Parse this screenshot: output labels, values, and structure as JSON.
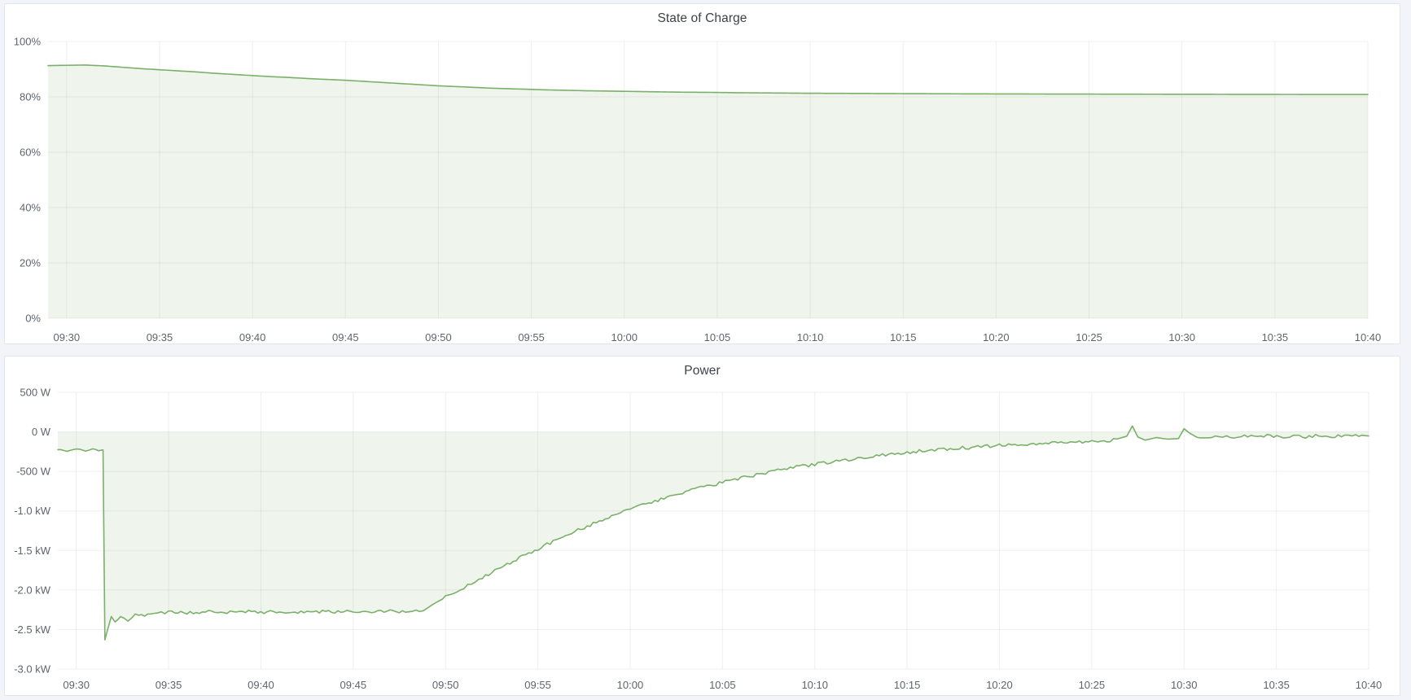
{
  "page": {
    "background": "#f2f4f9",
    "panel_background": "#ffffff"
  },
  "chart_data": [
    {
      "type": "area",
      "title": "State of Charge",
      "unit": "percent",
      "legend": "none",
      "grid": true,
      "x_axis": "time",
      "x_start": "09:29",
      "x_end": "10:40",
      "xlim_minutes": [
        0,
        71
      ],
      "ylim": [
        0,
        100
      ],
      "line_color": "#7bb06a",
      "fill_opacity": 0.12,
      "y_ticks": [
        [
          0,
          "0%"
        ],
        [
          20,
          "20%"
        ],
        [
          40,
          "40%"
        ],
        [
          60,
          "60%"
        ],
        [
          80,
          "80%"
        ],
        [
          100,
          "100%"
        ]
      ],
      "x_ticks": [
        [
          1,
          "09:30"
        ],
        [
          6,
          "09:35"
        ],
        [
          11,
          "09:40"
        ],
        [
          16,
          "09:45"
        ],
        [
          21,
          "09:50"
        ],
        [
          26,
          "09:55"
        ],
        [
          31,
          "10:00"
        ],
        [
          36,
          "10:05"
        ],
        [
          41,
          "10:10"
        ],
        [
          46,
          "10:15"
        ],
        [
          51,
          "10:20"
        ],
        [
          56,
          "10:25"
        ],
        [
          61,
          "10:30"
        ],
        [
          66,
          "10:35"
        ],
        [
          71,
          "10:40"
        ]
      ],
      "fill_to": 0,
      "noise_segments": [],
      "series": [
        {
          "name": "State of Charge",
          "points": [
            [
              0,
              91.3
            ],
            [
              1,
              91.4
            ],
            [
              2,
              91.5
            ],
            [
              3,
              91.2
            ],
            [
              4,
              90.7
            ],
            [
              5,
              90.2
            ],
            [
              6,
              89.8
            ],
            [
              7,
              89.4
            ],
            [
              8,
              89.0
            ],
            [
              9,
              88.5
            ],
            [
              10,
              88.1
            ],
            [
              11,
              87.7
            ],
            [
              12,
              87.3
            ],
            [
              13,
              87.0
            ],
            [
              14,
              86.6
            ],
            [
              15,
              86.3
            ],
            [
              16,
              86.0
            ],
            [
              17,
              85.6
            ],
            [
              18,
              85.2
            ],
            [
              19,
              84.8
            ],
            [
              20,
              84.4
            ],
            [
              21,
              84.0
            ],
            [
              22,
              83.7
            ],
            [
              23,
              83.4
            ],
            [
              24,
              83.1
            ],
            [
              25,
              82.9
            ],
            [
              26,
              82.7
            ],
            [
              27,
              82.5
            ],
            [
              28,
              82.35
            ],
            [
              29,
              82.2
            ],
            [
              30,
              82.1
            ],
            [
              31,
              82.0
            ],
            [
              32,
              81.9
            ],
            [
              33,
              81.8
            ],
            [
              34,
              81.7
            ],
            [
              35,
              81.65
            ],
            [
              36,
              81.6
            ],
            [
              37,
              81.5
            ],
            [
              38,
              81.45
            ],
            [
              39,
              81.4
            ],
            [
              40,
              81.35
            ],
            [
              41,
              81.3
            ],
            [
              42,
              81.28
            ],
            [
              43,
              81.25
            ],
            [
              44,
              81.22
            ],
            [
              45,
              81.2
            ],
            [
              46,
              81.17
            ],
            [
              47,
              81.15
            ],
            [
              48,
              81.12
            ],
            [
              49,
              81.1
            ],
            [
              50,
              81.08
            ],
            [
              51,
              81.06
            ],
            [
              52,
              81.05
            ],
            [
              53,
              81.03
            ],
            [
              54,
              81.02
            ],
            [
              55,
              81.0
            ],
            [
              56,
              81.0
            ],
            [
              57,
              80.98
            ],
            [
              58,
              80.97
            ],
            [
              59,
              80.96
            ],
            [
              60,
              80.95
            ],
            [
              61,
              80.94
            ],
            [
              62,
              80.93
            ],
            [
              63,
              80.92
            ],
            [
              64,
              80.91
            ],
            [
              65,
              80.9
            ],
            [
              66,
              80.89
            ],
            [
              67,
              80.88
            ],
            [
              68,
              80.87
            ],
            [
              69,
              80.86
            ],
            [
              70,
              80.86
            ],
            [
              71,
              80.85
            ]
          ]
        }
      ]
    },
    {
      "type": "area",
      "title": "Power",
      "unit": "watt",
      "legend": "none",
      "grid": true,
      "x_axis": "time",
      "x_start": "09:29",
      "x_end": "10:40",
      "xlim_minutes": [
        0,
        71
      ],
      "ylim": [
        -3000,
        500
      ],
      "line_color": "#7bb06a",
      "fill_opacity": 0.12,
      "y_ticks": [
        [
          500,
          "500 W"
        ],
        [
          0,
          "0 W"
        ],
        [
          -500,
          "-500 W"
        ],
        [
          -1000,
          "-1.0 kW"
        ],
        [
          -1500,
          "-1.5 kW"
        ],
        [
          -2000,
          "-2.0 kW"
        ],
        [
          -2500,
          "-2.5 kW"
        ],
        [
          -3000,
          "-3.0 kW"
        ]
      ],
      "x_ticks": [
        [
          1,
          "09:30"
        ],
        [
          6,
          "09:35"
        ],
        [
          11,
          "09:40"
        ],
        [
          16,
          "09:45"
        ],
        [
          21,
          "09:50"
        ],
        [
          26,
          "09:55"
        ],
        [
          31,
          "10:00"
        ],
        [
          36,
          "10:05"
        ],
        [
          41,
          "10:10"
        ],
        [
          46,
          "10:15"
        ],
        [
          51,
          "10:20"
        ],
        [
          56,
          "10:25"
        ],
        [
          61,
          "10:30"
        ],
        [
          66,
          "10:35"
        ],
        [
          71,
          "10:40"
        ]
      ],
      "fill_to": 0,
      "noise_segments": [
        {
          "from": 0.1,
          "to": 2.4,
          "amp": 13
        },
        {
          "from": 3.3,
          "to": 19.7,
          "amp": 19
        },
        {
          "from": 20.5,
          "to": 57.3,
          "amp": 21
        },
        {
          "from": 62.0,
          "to": 71,
          "amp": 20
        }
      ],
      "series": [
        {
          "name": "Power",
          "points": [
            [
              0,
              -225
            ],
            [
              0.5,
              -248
            ],
            [
              1,
              -222
            ],
            [
              1.5,
              -242
            ],
            [
              1.9,
              -205
            ],
            [
              2.2,
              -238
            ],
            [
              2.45,
              -228
            ],
            [
              2.55,
              -2630
            ],
            [
              2.7,
              -2500
            ],
            [
              2.9,
              -2335
            ],
            [
              3.1,
              -2405
            ],
            [
              3.4,
              -2345
            ],
            [
              3.8,
              -2375
            ],
            [
              4.2,
              -2315
            ],
            [
              4.7,
              -2335
            ],
            [
              5.2,
              -2290
            ],
            [
              6,
              -2282
            ],
            [
              7,
              -2292
            ],
            [
              8,
              -2272
            ],
            [
              9,
              -2286
            ],
            [
              10,
              -2272
            ],
            [
              11,
              -2282
            ],
            [
              12,
              -2270
            ],
            [
              13,
              -2281
            ],
            [
              14,
              -2272
            ],
            [
              15,
              -2279
            ],
            [
              16,
              -2269
            ],
            [
              17,
              -2278
            ],
            [
              18,
              -2269
            ],
            [
              19,
              -2276
            ],
            [
              19.8,
              -2262
            ],
            [
              20.3,
              -2185
            ],
            [
              21,
              -2088
            ],
            [
              21.6,
              -2020
            ],
            [
              22.2,
              -1948
            ],
            [
              23,
              -1845
            ],
            [
              24,
              -1718
            ],
            [
              25,
              -1598
            ],
            [
              26,
              -1482
            ],
            [
              27,
              -1368
            ],
            [
              28,
              -1262
            ],
            [
              29,
              -1162
            ],
            [
              30,
              -1068
            ],
            [
              31,
              -982
            ],
            [
              32,
              -902
            ],
            [
              33,
              -828
            ],
            [
              34,
              -760
            ],
            [
              35,
              -698
            ],
            [
              36,
              -640
            ],
            [
              37,
              -586
            ],
            [
              38,
              -536
            ],
            [
              39,
              -490
            ],
            [
              40,
              -448
            ],
            [
              41,
              -410
            ],
            [
              42,
              -375
            ],
            [
              43,
              -343
            ],
            [
              44,
              -313
            ],
            [
              45,
              -286
            ],
            [
              46,
              -261
            ],
            [
              47,
              -239
            ],
            [
              48,
              -220
            ],
            [
              49,
              -203
            ],
            [
              50,
              -188
            ],
            [
              51,
              -174
            ],
            [
              52,
              -162
            ],
            [
              53,
              -150
            ],
            [
              54,
              -140
            ],
            [
              55,
              -131
            ],
            [
              56,
              -122
            ],
            [
              57,
              -114
            ],
            [
              57.9,
              -55
            ],
            [
              58.2,
              75
            ],
            [
              58.5,
              -65
            ],
            [
              58.9,
              -105
            ],
            [
              59.5,
              -72
            ],
            [
              60.1,
              -92
            ],
            [
              60.7,
              -85
            ],
            [
              61.0,
              40
            ],
            [
              61.3,
              -15
            ],
            [
              61.7,
              -70
            ],
            [
              62.3,
              -88
            ],
            [
              62.9,
              -52
            ],
            [
              63.5,
              -74
            ],
            [
              64.1,
              -48
            ],
            [
              64.8,
              -68
            ],
            [
              65.5,
              -46
            ],
            [
              66.2,
              -64
            ],
            [
              66.9,
              -44
            ],
            [
              67.6,
              -60
            ],
            [
              68.3,
              -42
            ],
            [
              69,
              -56
            ],
            [
              69.7,
              -45
            ],
            [
              70.3,
              -55
            ],
            [
              70.8,
              -44
            ],
            [
              71,
              -52
            ]
          ]
        }
      ]
    }
  ]
}
